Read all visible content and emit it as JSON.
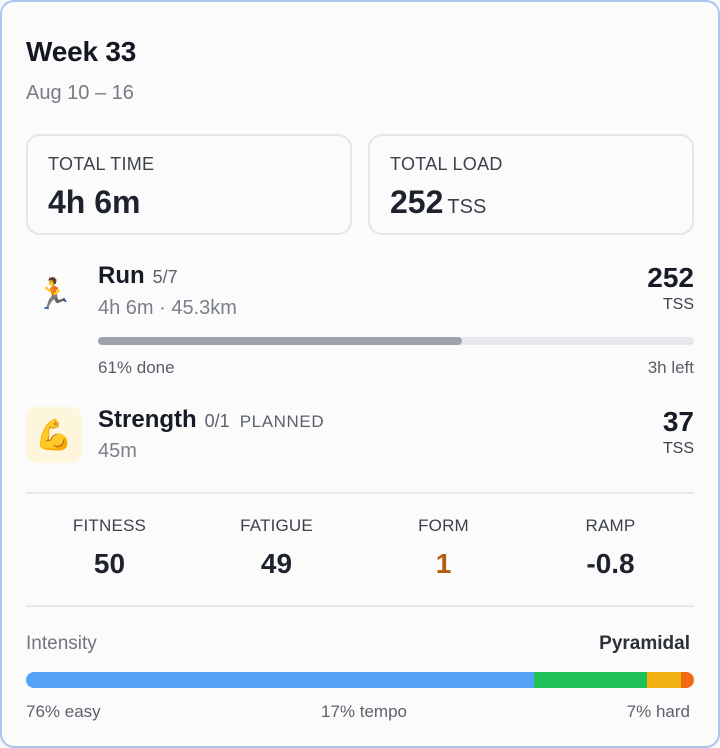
{
  "header": {
    "title": "Week 33",
    "date_range": "Aug 10 – 16"
  },
  "totals": {
    "time_label": "TOTAL TIME",
    "time_value": "4h 6m",
    "load_label": "TOTAL LOAD",
    "load_value": "252",
    "load_unit": "TSS"
  },
  "activities": [
    {
      "icon": "running-person-icon",
      "emoji": "🏃",
      "name": "Run",
      "count": "5/7",
      "summary": "4h 6m · 45.3km",
      "tss": "252",
      "tss_unit": "TSS",
      "progress_fraction": 0.61,
      "progress_done_label": "61% done",
      "progress_left_label": "3h left"
    },
    {
      "icon": "flexed-biceps-icon",
      "emoji": "💪",
      "name": "Strength",
      "count": "0/1",
      "status": "PLANNED",
      "summary": "45m",
      "tss": "37",
      "tss_unit": "TSS"
    }
  ],
  "metrics": [
    {
      "label": "FITNESS",
      "value": "50",
      "color": "#1d222c"
    },
    {
      "label": "FATIGUE",
      "value": "49",
      "color": "#1d222c"
    },
    {
      "label": "FORM",
      "value": "1",
      "color": "#b25e0c"
    },
    {
      "label": "RAMP",
      "value": "-0.8",
      "color": "#1d222c"
    }
  ],
  "intensity": {
    "label": "Intensity",
    "distribution_type": "Pyramidal",
    "segments": [
      {
        "fraction": 0.76,
        "color": "#55a3f7"
      },
      {
        "fraction": 0.17,
        "color": "#1fc15b"
      },
      {
        "fraction": 0.05,
        "color": "#f2b010"
      },
      {
        "fraction": 0.02,
        "color": "#f06a0f"
      }
    ],
    "legend_easy": "76% easy",
    "legend_tempo": "17% tempo",
    "legend_hard": "7% hard"
  }
}
